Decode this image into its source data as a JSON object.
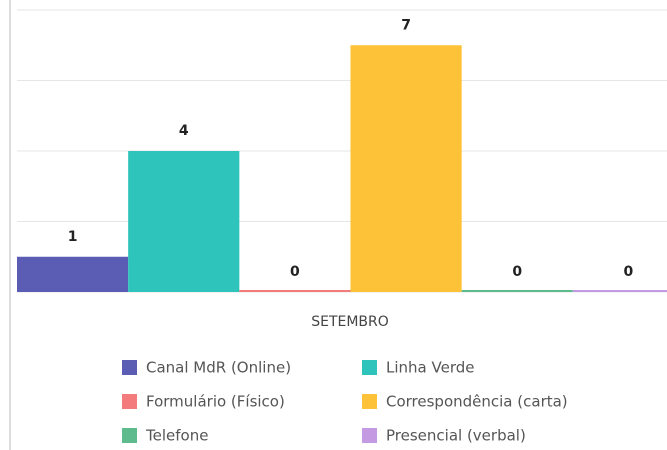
{
  "chart_data": {
    "type": "bar",
    "categories": [
      "SETEMBRO"
    ],
    "series": [
      {
        "name": "Canal MdR (Online)",
        "color": "#5b5db5",
        "values": [
          1
        ]
      },
      {
        "name": "Linha Verde",
        "color": "#2ec4bb",
        "values": [
          4
        ]
      },
      {
        "name": "Formulário (Físico)",
        "color": "#f47b7b",
        "values": [
          0
        ]
      },
      {
        "name": "Correspondência (carta)",
        "color": "#fdc237",
        "values": [
          7
        ]
      },
      {
        "name": "Telefone",
        "color": "#5dbb8e",
        "values": [
          0
        ]
      },
      {
        "name": "Presencial (verbal)",
        "color": "#c49be3",
        "values": [
          0
        ]
      }
    ],
    "ylim": [
      0,
      8
    ],
    "yticks": [
      0,
      2,
      4,
      6,
      8
    ],
    "grid": true
  }
}
